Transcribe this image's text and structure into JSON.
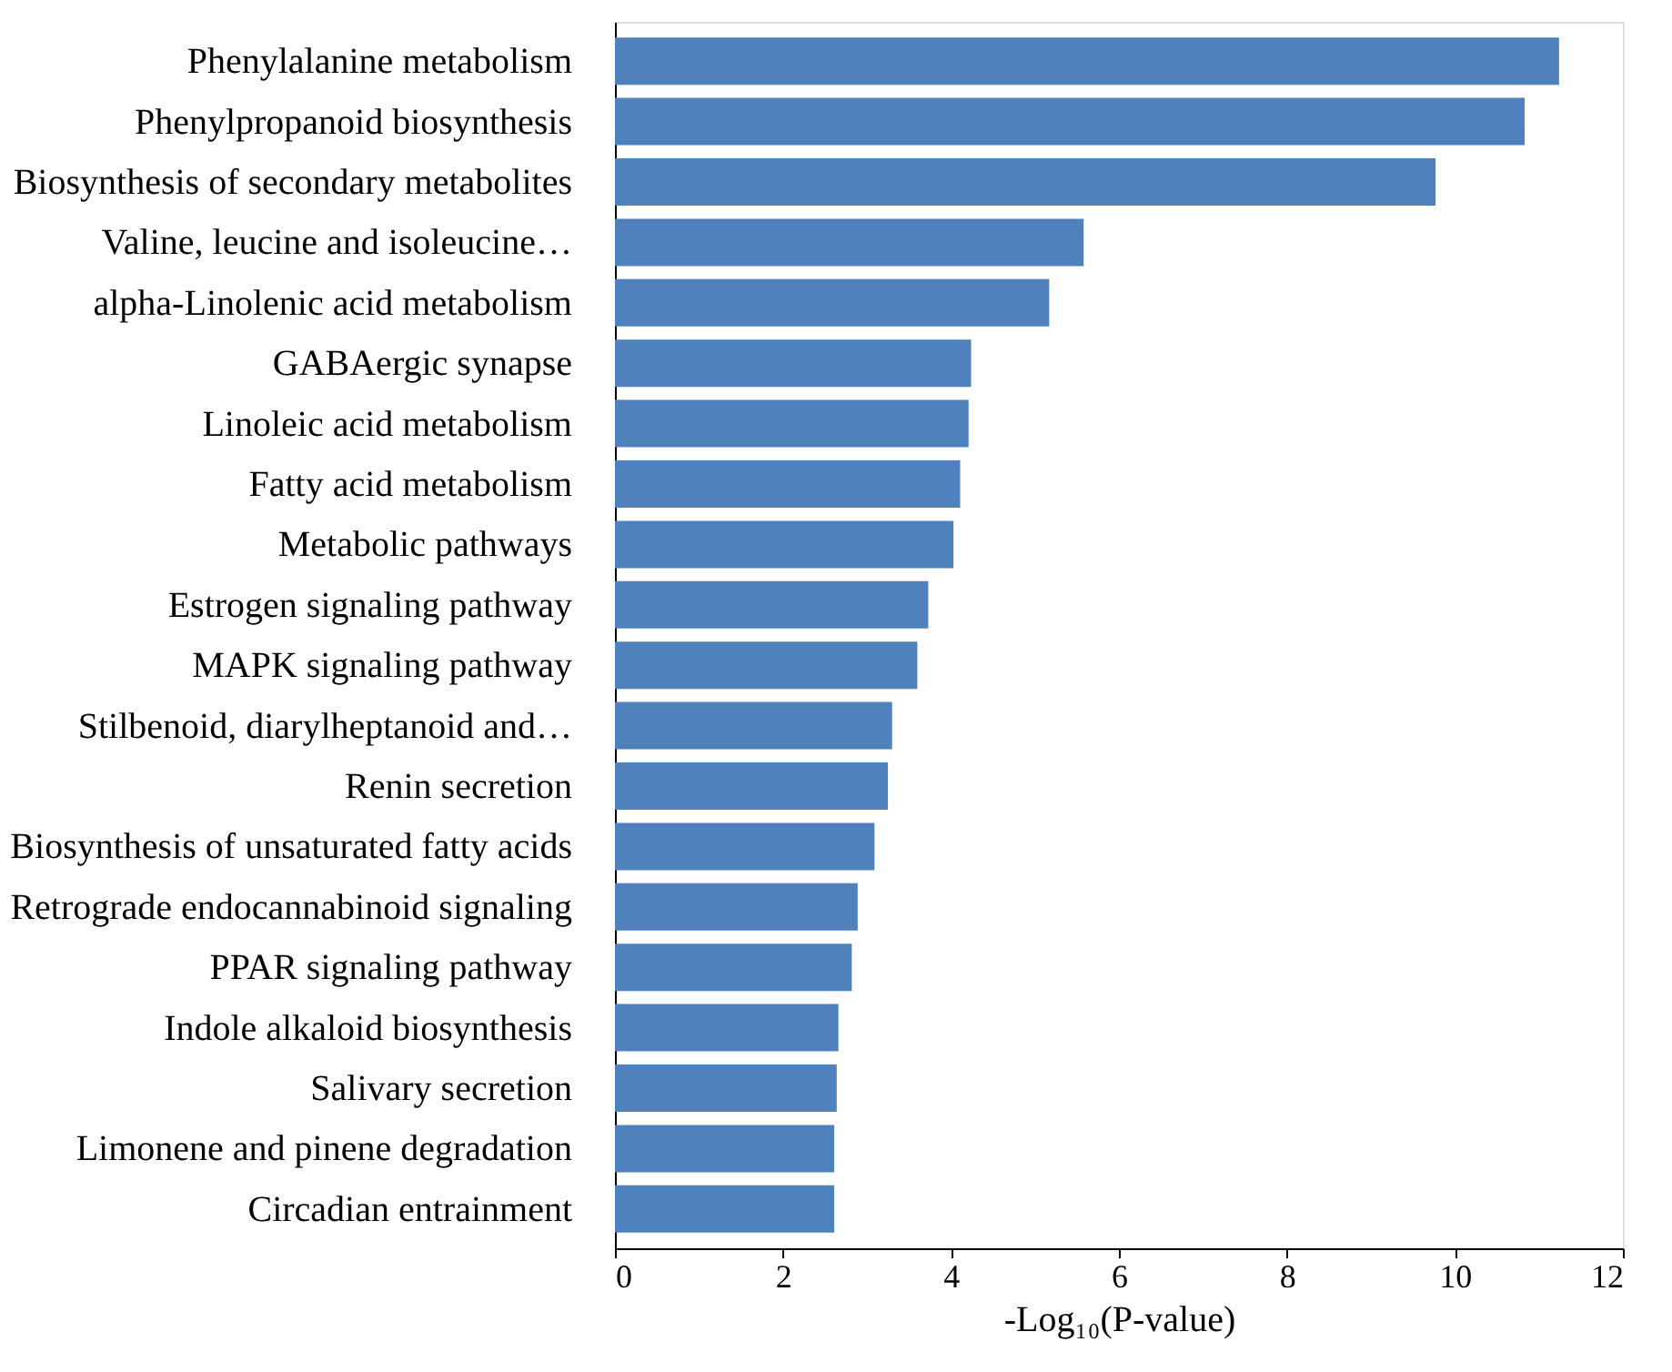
{
  "chart_data": {
    "type": "bar",
    "orientation": "horizontal",
    "xlabel": "-Log₁₀(P-value)",
    "categories": [
      "Phenylalanine metabolism",
      "Phenylpropanoid biosynthesis",
      "Biosynthesis of secondary metabolites",
      "Valine, leucine and isoleucine…",
      "alpha-Linolenic acid metabolism",
      "GABAergic synapse",
      "Linoleic acid metabolism",
      "Fatty acid metabolism",
      "Metabolic pathways",
      "Estrogen signaling pathway",
      "MAPK signaling pathway",
      "Stilbenoid, diarylheptanoid and…",
      "Renin secretion",
      "Biosynthesis of unsaturated fatty acids",
      "Retrograde endocannabinoid signaling",
      "PPAR signaling pathway",
      "Indole alkaloid biosynthesis",
      "Salivary secretion",
      "Limonene and pinene degradation",
      "Circadian entrainment"
    ],
    "values": [
      11.24,
      10.83,
      9.77,
      5.58,
      5.17,
      4.24,
      4.21,
      4.11,
      4.03,
      3.73,
      3.6,
      3.3,
      3.25,
      3.09,
      2.89,
      2.82,
      2.66,
      2.64,
      2.61,
      2.61
    ],
    "color": "#4f81bd",
    "xlim": [
      0,
      12
    ],
    "xticks": [
      0,
      2,
      4,
      6,
      8,
      10,
      12
    ],
    "grid": false
  }
}
